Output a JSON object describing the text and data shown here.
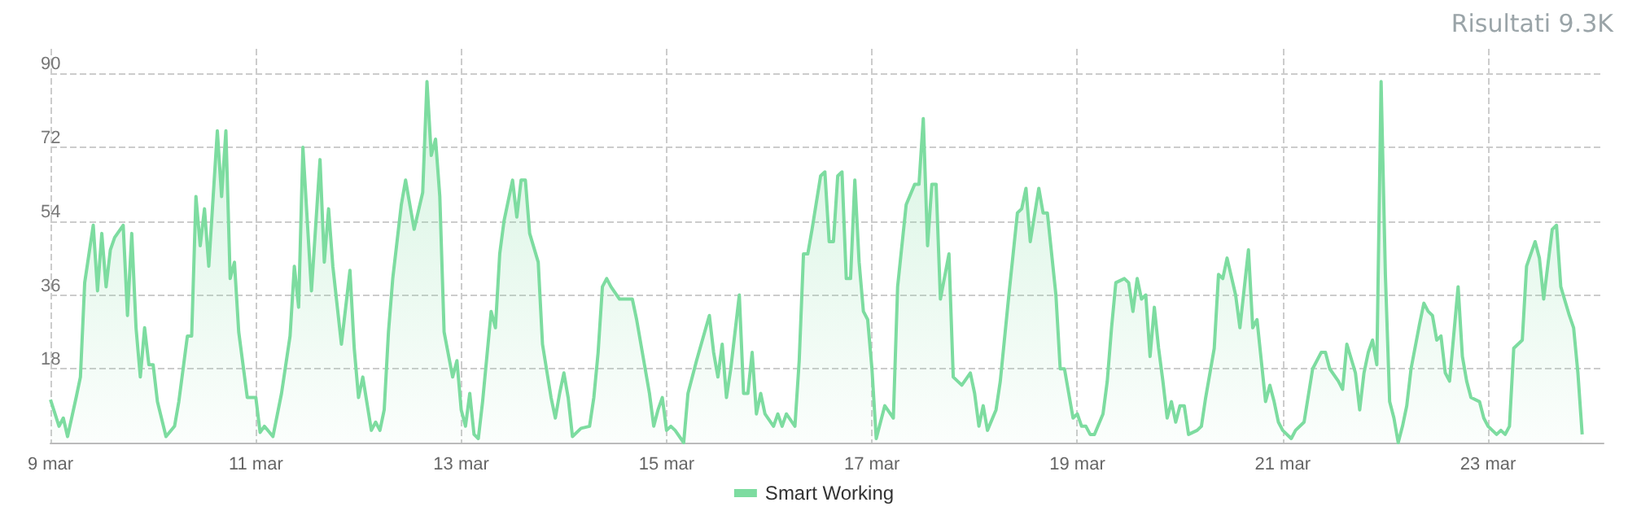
{
  "chart_data": {
    "type": "area",
    "title": "Risultati 9.3K",
    "x": [
      "--03-09T00:00",
      "--03-09T02:00",
      "--03-09T03:00",
      "--03-09T04:00",
      "--03-09T06:00",
      "--03-09T07:00",
      "--03-09T08:00",
      "--03-09T10:00",
      "--03-09T11:00",
      "--03-09T12:00",
      "--03-09T13:00",
      "--03-09T14:00",
      "--03-09T15:00",
      "--03-09T17:00",
      "--03-09T18:00",
      "--03-09T19:00",
      "--03-09T20:00",
      "--03-09T21:00",
      "--03-09T22:00",
      "--03-09T23:00",
      "--03-10T00:00",
      "--03-10T01:00",
      "--03-10T03:00",
      "--03-10T05:00",
      "--03-10T06:00",
      "--03-10T08:00",
      "--03-10T09:00",
      "--03-10T10:00",
      "--03-10T11:00",
      "--03-10T12:00",
      "--03-10T13:00",
      "--03-10T15:00",
      "--03-10T16:00",
      "--03-10T17:00",
      "--03-10T18:00",
      "--03-10T19:00",
      "--03-10T20:00",
      "--03-10T22:00",
      "--03-11T00:00",
      "--03-11T01:00",
      "--03-11T02:00",
      "--03-11T04:00",
      "--03-11T06:00",
      "--03-11T08:00",
      "--03-11T09:00",
      "--03-11T10:00",
      "--03-11T11:00",
      "--03-11T13:00",
      "--03-11T15:00",
      "--03-11T16:00",
      "--03-11T17:00",
      "--03-11T18:00",
      "--03-11T20:00",
      "--03-11T22:00",
      "--03-11T23:00",
      "--03-12T00:00",
      "--03-12T01:00",
      "--03-12T03:00",
      "--03-12T04:00",
      "--03-12T05:00",
      "--03-12T06:00",
      "--03-12T07:00",
      "--03-12T08:00",
      "--03-12T10:00",
      "--03-12T11:00",
      "--03-12T13:00",
      "--03-12T15:00",
      "--03-12T16:00",
      "--03-12T17:00",
      "--03-12T18:00",
      "--03-12T19:00",
      "--03-12T20:00",
      "--03-12T22:00",
      "--03-12T23:00",
      "--03-13T00:00",
      "--03-13T01:00",
      "--03-13T02:00",
      "--03-13T03:00",
      "--03-13T04:00",
      "--03-13T05:00",
      "--03-13T07:00",
      "--03-13T08:00",
      "--03-13T09:00",
      "--03-13T10:00",
      "--03-13T12:00",
      "--03-13T13:00",
      "--03-13T14:00",
      "--03-13T15:00",
      "--03-13T16:00",
      "--03-13T18:00",
      "--03-13T19:00",
      "--03-13T21:00",
      "--03-13T22:00",
      "--03-13T23:00",
      "--03-14T00:00",
      "--03-14T01:00",
      "--03-14T02:00",
      "--03-14T04:00",
      "--03-14T06:00",
      "--03-14T07:00",
      "--03-14T08:00",
      "--03-14T09:00",
      "--03-14T10:00",
      "--03-14T11:00",
      "--03-14T13:00",
      "--03-14T16:00",
      "--03-14T17:00",
      "--03-14T18:00",
      "--03-14T20:00",
      "--03-14T21:00",
      "--03-14T22:00",
      "--03-14T23:00",
      "--03-15T00:00",
      "--03-15T01:00",
      "--03-15T02:00",
      "--03-15T04:00",
      "--03-15T05:00",
      "--03-15T07:00",
      "--03-15T10:00",
      "--03-15T11:00",
      "--03-15T12:00",
      "--03-15T13:00",
      "--03-15T14:00",
      "--03-15T15:00",
      "--03-15T17:00",
      "--03-15T18:00",
      "--03-15T19:00",
      "--03-15T20:00",
      "--03-15T21:00",
      "--03-15T22:00",
      "--03-15T23:00",
      "--03-16T01:00",
      "--03-16T02:00",
      "--03-16T03:00",
      "--03-16T04:00",
      "--03-16T06:00",
      "--03-16T07:00",
      "--03-16T08:00",
      "--03-16T09:00",
      "--03-16T10:00",
      "--03-16T12:00",
      "--03-16T13:00",
      "--03-16T14:00",
      "--03-16T15:00",
      "--03-16T16:00",
      "--03-16T17:00",
      "--03-16T18:00",
      "--03-16T19:00",
      "--03-16T20:00",
      "--03-16T21:00",
      "--03-16T22:00",
      "--03-16T23:00",
      "--03-17T00:00",
      "--03-17T01:00",
      "--03-17T03:00",
      "--03-17T05:00",
      "--03-17T06:00",
      "--03-17T08:00",
      "--03-17T10:00",
      "--03-17T11:00",
      "--03-17T12:00",
      "--03-17T13:00",
      "--03-17T14:00",
      "--03-17T15:00",
      "--03-17T16:00",
      "--03-17T18:00",
      "--03-17T19:00",
      "--03-17T21:00",
      "--03-17T23:00",
      "--03-18T00:00",
      "--03-18T01:00",
      "--03-18T02:00",
      "--03-18T03:00",
      "--03-18T05:00",
      "--03-18T06:00",
      "--03-18T08:00",
      "--03-18T10:00",
      "--03-18T11:00",
      "--03-18T12:00",
      "--03-18T13:00",
      "--03-18T15:00",
      "--03-18T16:00",
      "--03-18T17:00",
      "--03-18T19:00",
      "--03-18T20:00",
      "--03-18T21:00",
      "--03-18T23:00",
      "--03-19T00:00",
      "--03-19T01:00",
      "--03-19T02:00",
      "--03-19T03:00",
      "--03-19T04:00",
      "--03-19T06:00",
      "--03-19T07:00",
      "--03-19T08:00",
      "--03-19T09:00",
      "--03-19T11:00",
      "--03-19T12:00",
      "--03-19T13:00",
      "--03-19T14:00",
      "--03-19T15:00",
      "--03-19T16:00",
      "--03-19T17:00",
      "--03-19T18:00",
      "--03-19T19:00",
      "--03-19T20:00",
      "--03-19T21:00",
      "--03-19T22:00",
      "--03-19T23:00",
      "--03-20T00:00",
      "--03-20T01:00",
      "--03-20T02:00",
      "--03-20T04:00",
      "--03-20T05:00",
      "--03-20T06:00",
      "--03-20T08:00",
      "--03-20T09:00",
      "--03-20T10:00",
      "--03-20T11:00",
      "--03-20T13:00",
      "--03-20T14:00",
      "--03-20T16:00",
      "--03-20T17:00",
      "--03-20T18:00",
      "--03-20T20:00",
      "--03-20T21:00",
      "--03-20T22:00",
      "--03-20T23:00",
      "--03-21T00:00",
      "--03-21T02:00",
      "--03-21T03:00",
      "--03-21T05:00",
      "--03-21T07:00",
      "--03-21T09:00",
      "--03-21T10:00",
      "--03-21T11:00",
      "--03-21T13:00",
      "--03-21T14:00",
      "--03-21T15:00",
      "--03-21T17:00",
      "--03-21T18:00",
      "--03-21T19:00",
      "--03-21T20:00",
      "--03-21T21:00",
      "--03-21T22:00",
      "--03-21T23:00",
      "--03-22T00:00",
      "--03-22T01:00",
      "--03-22T02:00",
      "--03-22T03:00",
      "--03-22T04:00",
      "--03-22T05:00",
      "--03-22T06:00",
      "--03-22T08:00",
      "--03-22T09:00",
      "--03-22T10:00",
      "--03-22T11:00",
      "--03-22T12:00",
      "--03-22T13:00",
      "--03-22T14:00",
      "--03-22T15:00",
      "--03-22T17:00",
      "--03-22T18:00",
      "--03-22T19:00",
      "--03-22T20:00",
      "--03-22T22:00",
      "--03-22T23:00",
      "--03-23T00:00",
      "--03-23T02:00",
      "--03-23T03:00",
      "--03-23T04:00",
      "--03-23T05:00",
      "--03-23T06:00",
      "--03-23T08:00",
      "--03-23T09:00",
      "--03-23T11:00",
      "--03-23T12:00",
      "--03-23T13:00",
      "--03-23T15:00",
      "--03-23T16:00",
      "--03-23T17:00",
      "--03-23T19:00",
      "--03-23T20:00",
      "--03-23T21:00",
      "--03-23T22:00"
    ],
    "series": [
      {
        "name": "Smart Working",
        "color": "#7ddca0",
        "values": [
          10.5,
          4,
          6,
          1.5,
          11,
          16,
          39,
          53,
          37,
          51,
          38,
          47,
          50,
          53,
          31,
          51,
          28,
          16,
          28,
          19,
          19,
          10,
          1.5,
          4,
          10,
          26,
          26,
          60,
          48,
          57,
          43,
          76,
          60,
          76,
          40,
          44,
          27,
          11,
          11,
          2.5,
          4,
          1.5,
          12,
          26,
          43,
          33,
          72,
          37,
          69,
          44,
          57,
          43,
          24,
          42,
          23,
          11,
          16,
          3,
          5,
          3,
          8,
          27,
          40,
          58,
          64,
          52,
          61,
          88,
          70,
          74,
          60,
          27,
          16,
          20,
          8,
          4,
          12,
          2,
          1,
          10,
          32,
          28,
          46,
          54,
          64,
          55,
          64,
          64,
          51,
          44,
          24,
          11,
          6,
          12,
          17,
          11,
          1.5,
          3.5,
          4,
          11,
          22,
          38,
          40,
          38,
          35,
          35,
          30,
          24,
          12,
          4,
          8,
          11,
          3,
          4,
          3,
          0,
          12,
          20,
          31,
          22,
          16,
          24,
          11,
          18,
          36,
          12,
          12,
          22,
          7,
          12,
          7,
          4,
          7,
          4,
          7,
          4,
          20,
          46,
          46,
          52,
          65,
          66,
          49,
          49,
          65,
          66,
          40,
          40,
          64,
          44,
          32,
          30,
          18,
          1,
          9,
          6,
          38,
          58,
          63,
          63,
          79,
          48,
          63,
          63,
          35,
          46,
          16,
          14,
          17,
          12,
          4,
          9,
          3,
          8,
          15,
          36,
          56,
          57,
          62,
          49,
          62,
          56,
          56,
          36,
          18,
          18,
          6,
          7,
          4,
          4,
          2,
          2,
          7,
          15,
          28,
          39,
          40,
          39,
          32,
          40,
          35,
          36,
          21,
          33,
          23,
          15,
          6,
          10,
          5,
          9,
          9,
          2,
          3,
          4,
          11,
          23,
          41,
          40,
          45,
          36,
          28,
          47,
          28,
          30,
          10,
          14,
          10,
          5,
          3,
          1,
          3,
          5,
          18,
          22,
          22,
          18,
          15,
          13,
          24,
          17,
          8,
          17,
          22,
          25,
          19,
          88,
          41,
          10,
          6,
          0,
          4,
          9,
          18,
          29,
          34,
          32,
          31,
          25,
          26,
          17,
          15,
          38,
          21,
          15,
          11,
          10,
          6,
          4,
          2,
          3,
          2,
          4,
          23,
          25,
          43,
          49,
          45,
          35,
          52,
          53,
          38,
          31,
          28,
          17,
          2
        ]
      }
    ],
    "xlim": [
      "--03-09T00:00",
      "--03-24T03:00"
    ],
    "xticks": [
      {
        "value": "--03-09",
        "label": "9 mar"
      },
      {
        "value": "--03-11",
        "label": "11 mar"
      },
      {
        "value": "--03-13",
        "label": "13 mar"
      },
      {
        "value": "--03-15",
        "label": "15 mar"
      },
      {
        "value": "--03-17",
        "label": "17 mar"
      },
      {
        "value": "--03-19",
        "label": "19 mar"
      },
      {
        "value": "--03-21",
        "label": "21 mar"
      },
      {
        "value": "--03-23",
        "label": "23 mar"
      }
    ],
    "ylim": [
      0,
      96
    ],
    "yticks": [
      {
        "value": 0,
        "label": null
      },
      18,
      36,
      54,
      72,
      90
    ],
    "grid": true,
    "legend": "bottom",
    "marker": "none",
    "line_style": "solid"
  }
}
